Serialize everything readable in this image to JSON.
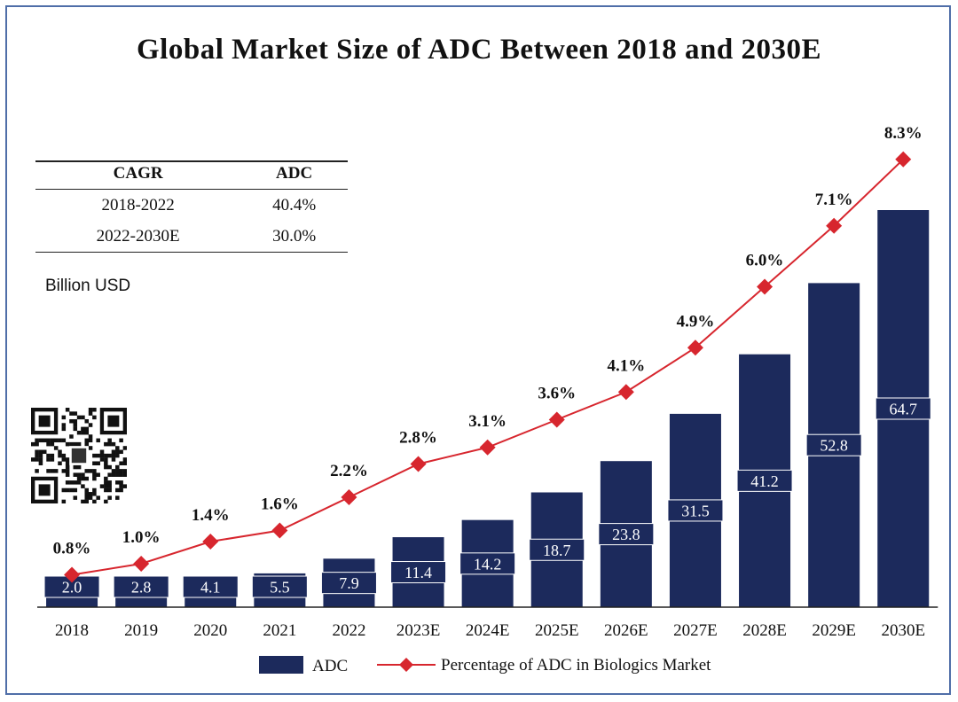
{
  "title": "Global Market Size of ADC Between 2018 and 2030E",
  "cagr_table": {
    "headers": [
      "CAGR",
      "ADC"
    ],
    "rows": [
      [
        "2018-2022",
        "40.4%"
      ],
      [
        "2022-2030E",
        "30.0%"
      ]
    ]
  },
  "unit_label": "Billion USD",
  "legend": {
    "bar": "ADC",
    "line": "Percentage of ADC in Biologics Market"
  },
  "colors": {
    "bar": "#1c2a5c",
    "line": "#d7262e",
    "frame": "#4f6ea8"
  },
  "chart_data": {
    "type": "bar",
    "categories": [
      "2018",
      "2019",
      "2020",
      "2021",
      "2022",
      "2023E",
      "2024E",
      "2025E",
      "2026E",
      "2027E",
      "2028E",
      "2029E",
      "2030E"
    ],
    "series": [
      {
        "name": "ADC",
        "type": "bar",
        "values": [
          2.0,
          2.8,
          4.1,
          5.5,
          7.9,
          11.4,
          14.2,
          18.7,
          23.8,
          31.5,
          41.2,
          52.8,
          64.7
        ],
        "labels": [
          "2.0",
          "2.8",
          "4.1",
          "5.5",
          "7.9",
          "11.4",
          "14.2",
          "18.7",
          "23.8",
          "31.5",
          "41.2",
          "52.8",
          "64.7"
        ]
      },
      {
        "name": "Percentage of ADC in Biologics Market",
        "type": "line",
        "values": [
          0.8,
          1.0,
          1.4,
          1.6,
          2.2,
          2.8,
          3.1,
          3.6,
          4.1,
          4.9,
          6.0,
          7.1,
          8.3
        ],
        "labels": [
          "0.8%",
          "1.0%",
          "1.4%",
          "1.6%",
          "2.2%",
          "2.8%",
          "3.1%",
          "3.6%",
          "4.1%",
          "4.9%",
          "6.0%",
          "7.1%",
          "8.3%"
        ]
      }
    ],
    "xlabel": "",
    "ylabel": "Billion USD",
    "legend_position": "bottom-center",
    "grid": false
  }
}
